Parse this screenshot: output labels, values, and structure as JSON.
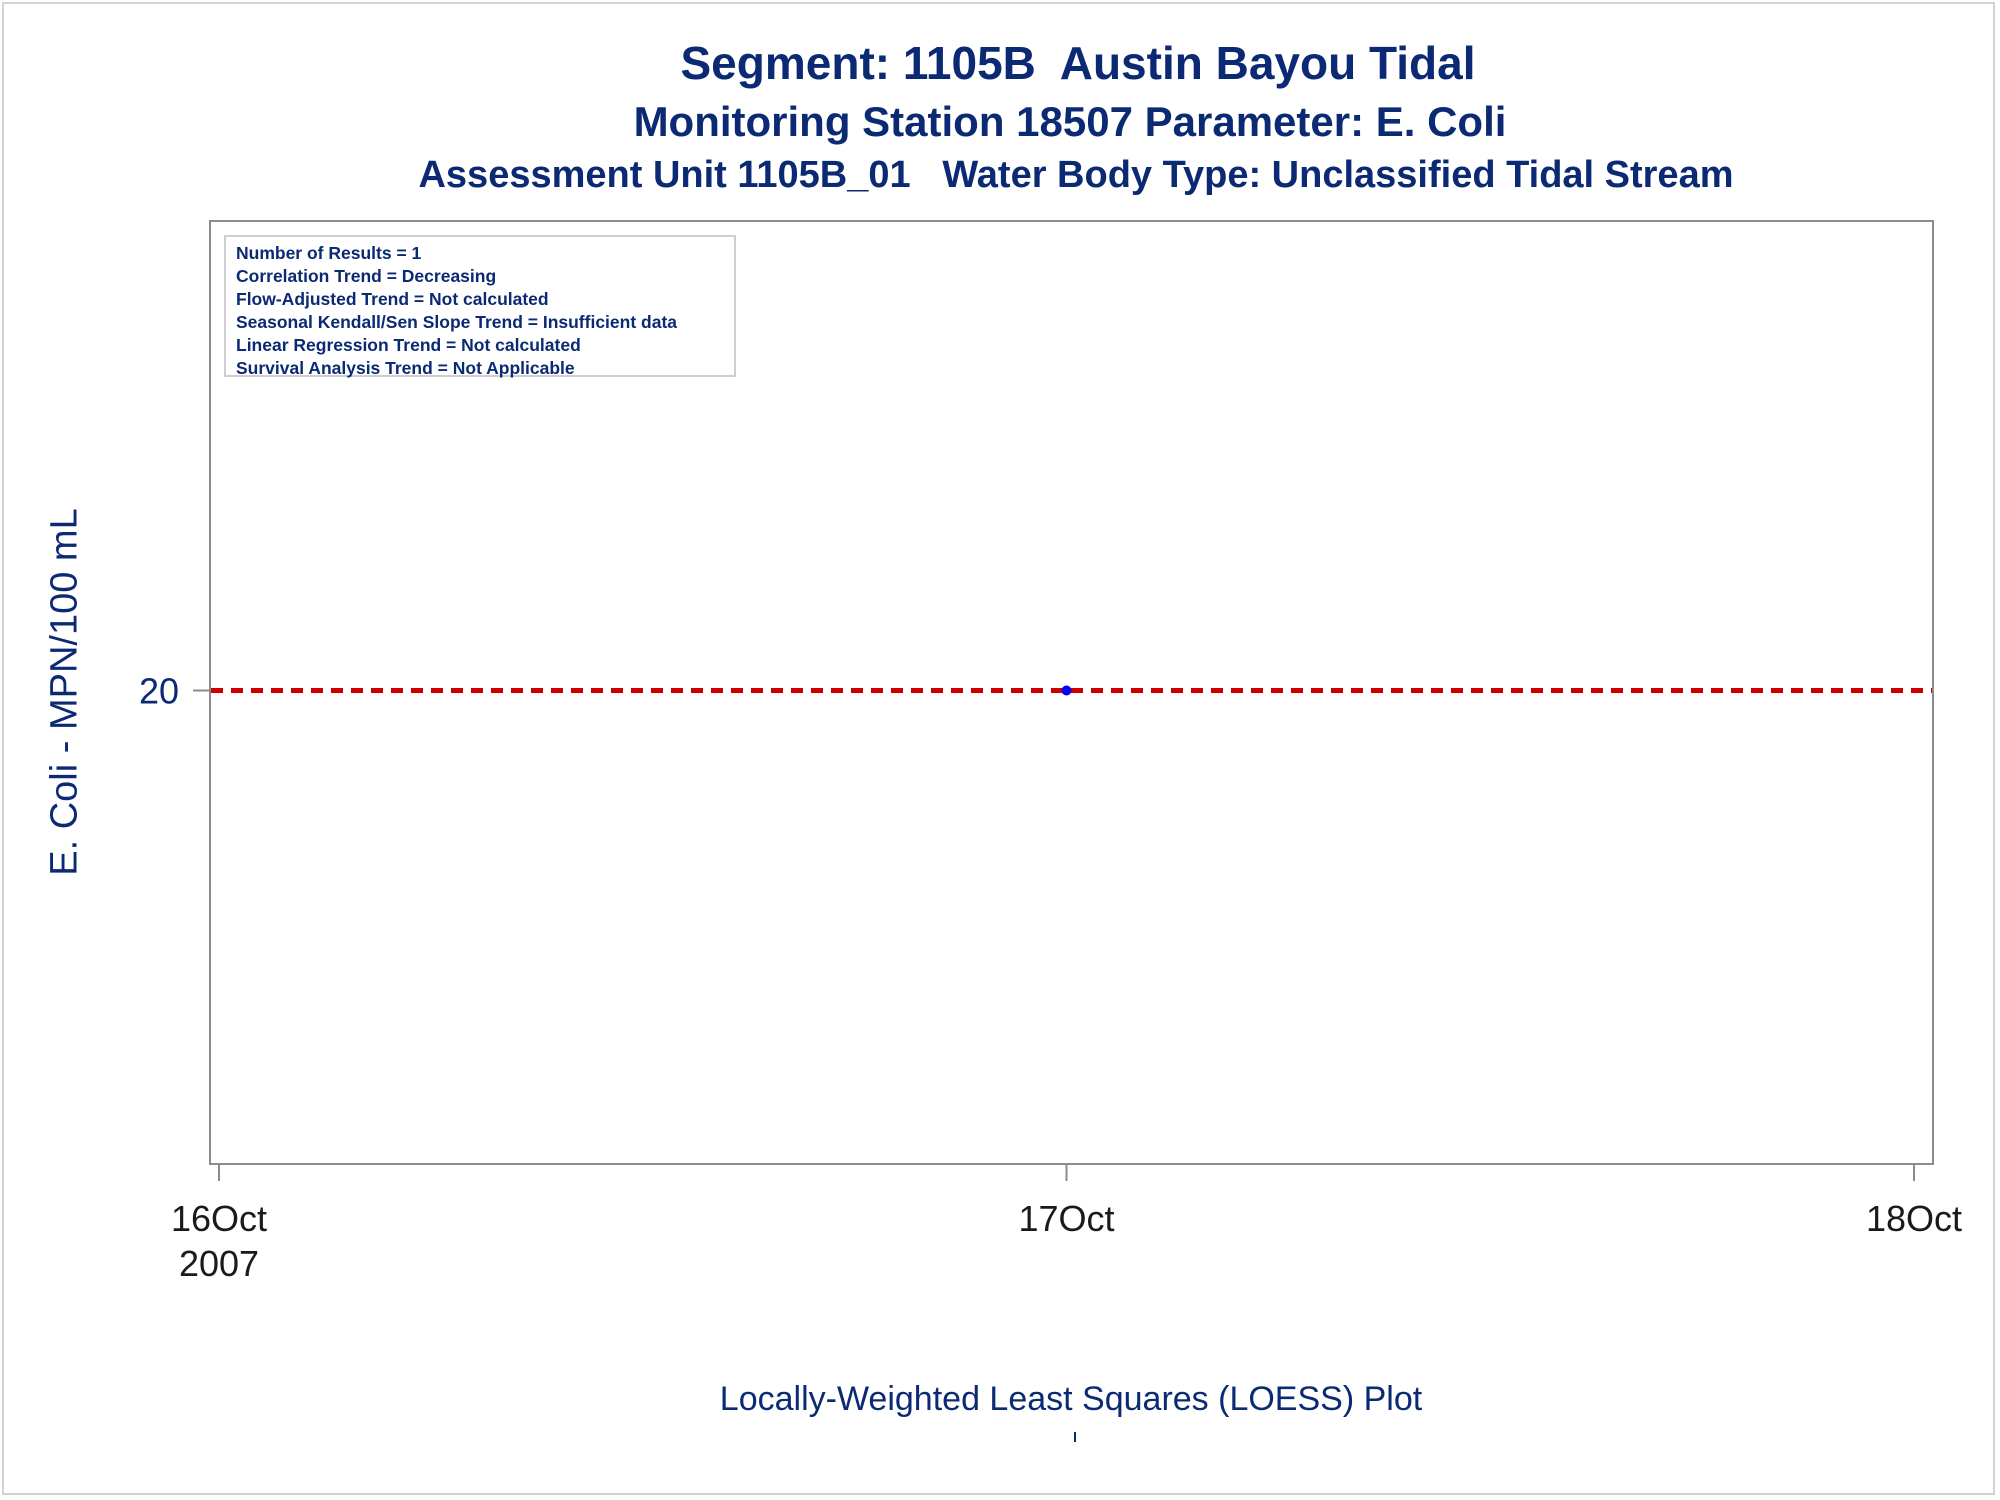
{
  "titles": {
    "line1": "Segment: 1105B  Austin Bayou Tidal",
    "line2": "Monitoring Station 18507 Parameter: E. Coli",
    "line3": "Assessment Unit 1105B_01   Water Body Type: Unclassified Tidal Stream"
  },
  "legend_box": [
    "Number of Results = 1",
    "Correlation Trend = Decreasing",
    "Flow-Adjusted Trend = Not calculated",
    "Seasonal Kendall/Sen Slope Trend = Insufficient data",
    "Linear Regression Trend = Not calculated",
    "Survival Analysis Trend = Not Applicable"
  ],
  "footnote": "Locally-Weighted Least Squares (LOESS) Plot",
  "colors": {
    "text": "#0b2a73",
    "point": "#0000ff",
    "reference_line": "#cc0000",
    "axis": "#8c8c8c"
  },
  "chart_data": {
    "type": "scatter",
    "ylabel": "E. Coli - MPN/100 mL",
    "xlabel": "",
    "x_ticks": [
      {
        "value": "2007-10-16",
        "label": "16Oct",
        "sublabel": "2007"
      },
      {
        "value": "2007-10-17",
        "label": "17Oct",
        "sublabel": ""
      },
      {
        "value": "2007-10-18",
        "label": "18Oct",
        "sublabel": ""
      }
    ],
    "y_ticks": [
      20
    ],
    "xlim": [
      "2007-10-16",
      "2007-10-18"
    ],
    "ylim": [
      0,
      40
    ],
    "points": [
      {
        "x": "2007-10-17",
        "y": 20
      }
    ],
    "reference_lines": [
      {
        "y": 20,
        "style": "dashed"
      }
    ],
    "grid": false,
    "legend_placement": "top-left"
  }
}
